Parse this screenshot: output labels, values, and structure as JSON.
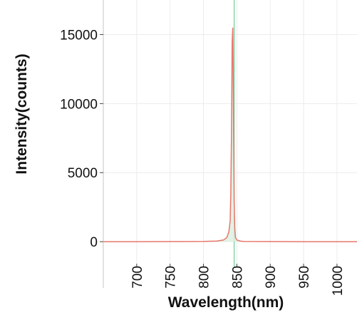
{
  "chart_data": {
    "type": "line",
    "title": "",
    "xlabel": "Wavelength(nm)",
    "ylabel": "Intensity(counts)",
    "xlim": [
      650,
      1030
    ],
    "ylim": [
      -1800,
      17500
    ],
    "x_ticks": [
      700,
      750,
      800,
      850,
      900,
      950,
      1000
    ],
    "y_ticks": [
      0,
      5000,
      10000,
      15000
    ],
    "grid": true,
    "series": [
      {
        "color": "#e8776b",
        "x": [
          650,
          700,
          750,
          800,
          820,
          830,
          835,
          838,
          840,
          841,
          842,
          843,
          844,
          845,
          846,
          847,
          848,
          850,
          855,
          860,
          900,
          950,
          1000,
          1030
        ],
        "y": [
          0,
          0,
          10,
          20,
          50,
          120,
          300,
          700,
          1500,
          3500,
          8000,
          14500,
          15500,
          9000,
          3000,
          900,
          300,
          120,
          50,
          20,
          10,
          0,
          0,
          0
        ]
      }
    ],
    "marker_line": {
      "x": 846,
      "color": "#6fcf97"
    }
  }
}
